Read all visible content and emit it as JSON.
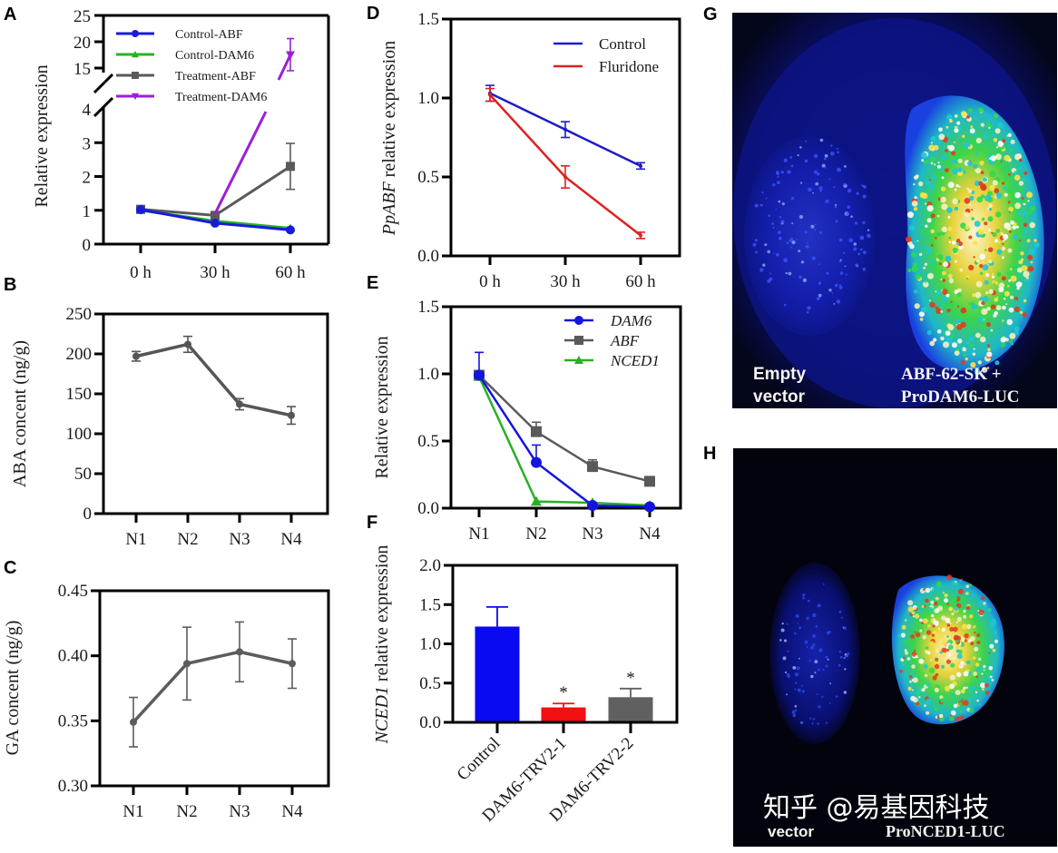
{
  "panels": {
    "A": "A",
    "B": "B",
    "C": "C",
    "D": "D",
    "E": "E",
    "F": "F",
    "G": "G",
    "H": "H"
  },
  "chart_data": [
    {
      "id": "A",
      "type": "line",
      "title": "",
      "xlabel": "",
      "ylabel": "Relative expression",
      "categories": [
        "0 h",
        "30 h",
        "60 h"
      ],
      "y_axis_break": {
        "lower": [
          0,
          4
        ],
        "upper": [
          15,
          25
        ]
      },
      "yticks_lower": [
        "0",
        "1",
        "2",
        "3",
        "4"
      ],
      "yticks_upper": [
        "15",
        "20",
        "25"
      ],
      "legend_position": "top-left",
      "series": [
        {
          "name": "Control-ABF",
          "color": "#1a1adb",
          "marker": "circle",
          "values": [
            1.02,
            0.62,
            0.42
          ],
          "errors": [
            0.03,
            0.03,
            0.03
          ]
        },
        {
          "name": "Control-DAM6",
          "color": "#22b522",
          "marker": "triangle",
          "values": [
            1.0,
            0.68,
            0.47
          ],
          "errors": [
            0.03,
            0.03,
            0.03
          ]
        },
        {
          "name": "Treatment-ABF",
          "color": "#5a5a5a",
          "marker": "square",
          "values": [
            1.03,
            0.85,
            2.3
          ],
          "errors": [
            0.03,
            0.05,
            0.68
          ]
        },
        {
          "name": "Treatment-DAM6",
          "color": "#9b1fd6",
          "marker": "triangle-down",
          "values": [
            1.0,
            0.9,
            17.5
          ],
          "errors": [
            0.03,
            0.05,
            3.0
          ]
        }
      ]
    },
    {
      "id": "B",
      "type": "line",
      "title": "",
      "xlabel": "",
      "ylabel": "ABA concent (ng/g)",
      "categories": [
        "N1",
        "N2",
        "N3",
        "N4"
      ],
      "ylim": [
        0,
        250
      ],
      "yticks": [
        "0",
        "50",
        "100",
        "150",
        "200",
        "250"
      ],
      "series": [
        {
          "name": "ABA",
          "color": "#555555",
          "values": [
            197,
            212,
            137,
            123
          ],
          "errors": [
            6,
            10,
            7,
            11
          ]
        }
      ]
    },
    {
      "id": "C",
      "type": "line",
      "title": "",
      "xlabel": "",
      "ylabel": "GA concent (ng/g)",
      "categories": [
        "N1",
        "N2",
        "N3",
        "N4"
      ],
      "ylim": [
        0.3,
        0.45
      ],
      "yticks": [
        "0.30",
        "0.35",
        "0.40",
        "0.45"
      ],
      "series": [
        {
          "name": "GA",
          "color": "#5c5c5c",
          "values": [
            0.349,
            0.394,
            0.403,
            0.394
          ],
          "errors": [
            0.019,
            0.028,
            0.023,
            0.019
          ]
        }
      ]
    },
    {
      "id": "D",
      "type": "line",
      "title": "",
      "xlabel": "",
      "ylabel_italic": "PpABF",
      "ylabel_rest": " relative expression",
      "categories": [
        "0 h",
        "30 h",
        "60 h"
      ],
      "ylim": [
        0,
        1.5
      ],
      "yticks": [
        "0.0",
        "0.5",
        "1.0",
        "1.5"
      ],
      "legend_position": "top-right",
      "series": [
        {
          "name": "Control",
          "color": "#1c1cc8",
          "values": [
            1.03,
            0.8,
            0.57
          ],
          "errors": [
            0.05,
            0.05,
            0.02
          ]
        },
        {
          "name": "Fluridone",
          "color": "#e02020",
          "values": [
            1.02,
            0.5,
            0.13
          ],
          "errors": [
            0.04,
            0.07,
            0.02
          ]
        }
      ]
    },
    {
      "id": "E",
      "type": "line",
      "title": "",
      "xlabel": "",
      "ylabel": "Relative expression",
      "categories": [
        "N1",
        "N2",
        "N3",
        "N4"
      ],
      "ylim": [
        0,
        1.5
      ],
      "yticks": [
        "0.0",
        "0.5",
        "1.0",
        "1.5"
      ],
      "legend_position": "top-right",
      "series": [
        {
          "name": "DAM6",
          "color": "#1414e0",
          "marker": "circle",
          "values": [
            0.99,
            0.34,
            0.02,
            0.01
          ],
          "errors": [
            0.17,
            0.13,
            0,
            0
          ]
        },
        {
          "name": "ABF",
          "color": "#5a5a5a",
          "marker": "square",
          "values": [
            0.99,
            0.57,
            0.31,
            0.2
          ],
          "errors": [
            0.0,
            0.07,
            0.05,
            0.0
          ]
        },
        {
          "name": "NCED1",
          "color": "#26b026",
          "marker": "triangle",
          "values": [
            0.98,
            0.05,
            0.04,
            0.02
          ],
          "errors": [
            0,
            0,
            0,
            0
          ]
        }
      ]
    },
    {
      "id": "F",
      "type": "bar",
      "title": "",
      "xlabel": "",
      "ylabel_italic": "NCED1",
      "ylabel_rest": " relative expression",
      "categories": [
        "Control",
        "DAM6-TRV2-1",
        "DAM6-TRV2-2"
      ],
      "ylim": [
        0,
        2.0
      ],
      "yticks": [
        "0.0",
        "0.5",
        "1.0",
        "1.5",
        "2.0"
      ],
      "values": [
        1.22,
        0.19,
        0.32
      ],
      "errors": [
        0.25,
        0.05,
        0.11
      ],
      "colors": [
        "#0a0af0",
        "#f21010",
        "#606060"
      ],
      "annotations": [
        "",
        "*",
        "*"
      ]
    }
  ],
  "images": {
    "G": {
      "label_left_1": "Empty",
      "label_left_2": "vector",
      "label_right_1": "ABF-62-SK +",
      "label_right_2": "ProDAM6-LUC"
    },
    "H": {
      "label_left_2": "vector",
      "label_right_2": "ProNCED1-LUC",
      "watermark": "知乎 @易基因科技"
    }
  }
}
